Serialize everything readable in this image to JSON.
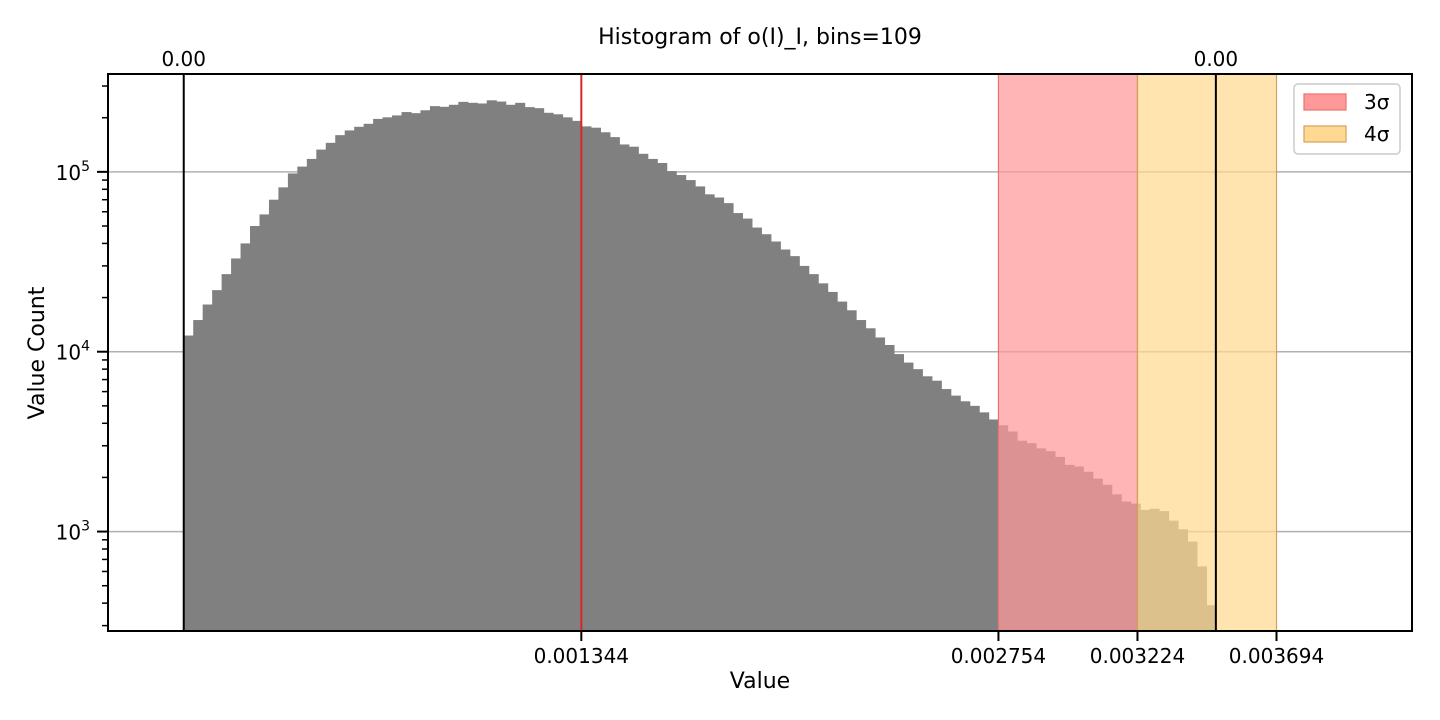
{
  "chart_data": {
    "type": "bar",
    "title": "Histogram of o(I)_I, bins=109",
    "xlabel": "Value",
    "ylabel": "Value Count",
    "yscale": "log",
    "ylim": [
      280,
      350000
    ],
    "xlim": [
      -0.000256,
      0.004152
    ],
    "bins": 109,
    "bin_range": [
      0.0,
      0.003489
    ],
    "counts": [
      12300,
      15000,
      18300,
      22000,
      27000,
      33000,
      40000,
      50000,
      58000,
      70000,
      82000,
      98000,
      107000,
      118000,
      133000,
      145000,
      160000,
      170000,
      178000,
      185000,
      197000,
      201000,
      206000,
      215000,
      212000,
      220000,
      232000,
      230000,
      236000,
      245000,
      242000,
      240000,
      250000,
      246000,
      236000,
      242000,
      229000,
      226000,
      213000,
      209000,
      201000,
      192000,
      179000,
      176000,
      166000,
      156000,
      142000,
      138000,
      126000,
      118000,
      112000,
      101000,
      96000,
      90000,
      83000,
      75000,
      72000,
      67000,
      59000,
      55000,
      49000,
      45000,
      41000,
      37000,
      34000,
      30000,
      27000,
      24000,
      21500,
      19000,
      17000,
      15000,
      13500,
      12000,
      10900,
      9700,
      8700,
      8000,
      7300,
      6900,
      6200,
      5700,
      5300,
      5000,
      4600,
      4200,
      3900,
      3600,
      3200,
      3100,
      2900,
      2800,
      2600,
      2350,
      2300,
      2150,
      1970,
      1820,
      1610,
      1470,
      1430,
      1320,
      1340,
      1300,
      1150,
      1030,
      880,
      640,
      390
    ],
    "bar_color": "#808080",
    "vlines": [
      {
        "x": 0.0,
        "color": "#000000",
        "label": "0.00"
      },
      {
        "x": 0.001344,
        "color": "#d62728"
      },
      {
        "x": 0.003489,
        "color": "#000000",
        "label": "0.00"
      }
    ],
    "bands": [
      {
        "name": "3σ",
        "x0": 0.002754,
        "x1": 0.003224,
        "color": "#ff9999",
        "edge": "#e8736f"
      },
      {
        "name": "4σ",
        "x0": 0.003224,
        "x1": 0.003694,
        "color": "#ffd991",
        "edge": "#d4a15a"
      }
    ],
    "xticks": [
      "0.001344",
      "0.002754",
      "0.003224",
      "0.003694"
    ],
    "xtick_values": [
      0.001344,
      0.002754,
      0.003224,
      0.003694
    ],
    "yticks": [
      1000,
      10000,
      100000
    ],
    "ytick_labels": [
      "10",
      "10",
      "10"
    ],
    "ytick_exponents": [
      "3",
      "4",
      "5"
    ],
    "grid": "y-major",
    "legend_position": "top-right"
  }
}
